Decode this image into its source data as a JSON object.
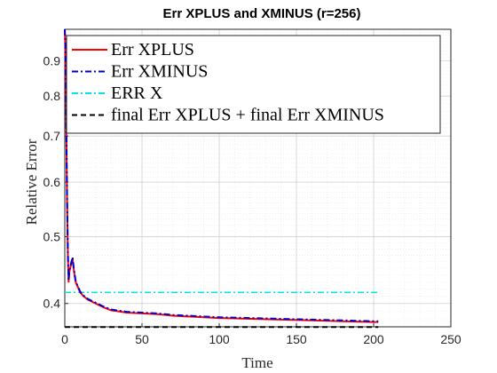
{
  "chart_data": {
    "type": "line",
    "title": "Err XPLUS and XMINUS (r=256)",
    "xlabel": "Time",
    "ylabel": "Relative Error",
    "xlim": [
      0,
      250
    ],
    "ylim": [
      0.37,
      1.0
    ],
    "yscale": "log",
    "grid": true,
    "minor_grid": true,
    "legend_position": "top-right",
    "xticks": [
      0,
      50,
      100,
      150,
      200,
      250
    ],
    "xtick_labels": [
      "0",
      "50",
      "100",
      "150",
      "200",
      "250"
    ],
    "yticks": [
      0.4,
      0.5,
      0.6,
      0.7,
      0.8,
      0.9
    ],
    "ytick_labels": [
      "0.4",
      "0.5",
      "0.6",
      "0.7",
      "0.8",
      "0.9"
    ],
    "series": [
      {
        "name": "Err XPLUS",
        "color": "#ff0000",
        "style": "solid",
        "x": [
          0,
          0.3,
          0.8,
          1.5,
          2,
          2.5,
          3,
          4,
          5,
          6,
          7,
          8,
          10,
          12,
          15,
          20,
          25,
          30,
          40,
          50,
          60,
          70,
          80,
          90,
          100,
          120,
          140,
          160,
          180,
          200,
          203
        ],
        "y": [
          1.0,
          0.95,
          0.78,
          0.56,
          0.47,
          0.43,
          0.445,
          0.455,
          0.465,
          0.445,
          0.43,
          0.425,
          0.415,
          0.41,
          0.405,
          0.4,
          0.395,
          0.391,
          0.388,
          0.387,
          0.386,
          0.384,
          0.383,
          0.382,
          0.381,
          0.38,
          0.379,
          0.378,
          0.377,
          0.376,
          0.376
        ]
      },
      {
        "name": "Err XMINUS",
        "color": "#0000cc",
        "style": "dashdot",
        "x": [
          0,
          0.3,
          0.8,
          1.5,
          2,
          2.5,
          3,
          4,
          5,
          6,
          7,
          8,
          10,
          12,
          15,
          20,
          25,
          30,
          40,
          50,
          60,
          70,
          80,
          90,
          100,
          120,
          140,
          160,
          180,
          200,
          203
        ],
        "y": [
          1.0,
          0.96,
          0.79,
          0.57,
          0.475,
          0.432,
          0.447,
          0.457,
          0.467,
          0.447,
          0.432,
          0.426,
          0.416,
          0.411,
          0.406,
          0.401,
          0.396,
          0.392,
          0.389,
          0.388,
          0.387,
          0.385,
          0.384,
          0.383,
          0.382,
          0.381,
          0.38,
          0.379,
          0.378,
          0.377,
          0.377
        ]
      },
      {
        "name": "ERR X",
        "color": "#00e5e5",
        "style": "dashdot",
        "x": [
          0,
          203
        ],
        "y": [
          0.415,
          0.415
        ]
      },
      {
        "name": "final Err XPLUS + final Err XMINUS",
        "color": "#000000",
        "style": "dashed",
        "x": [
          0,
          203
        ],
        "y": [
          0.0,
          0.0
        ]
      }
    ]
  }
}
